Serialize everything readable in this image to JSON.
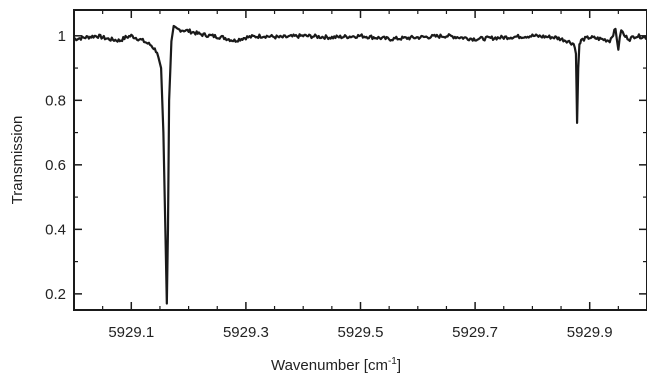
{
  "chart_data": {
    "type": "line",
    "title": "",
    "xlabel": "Wavenumber [cm",
    "xlabel_sup": "-1",
    "xlabel_end": "]",
    "ylabel": "Transmission",
    "xlim": [
      5929.0,
      5930.0
    ],
    "ylim": [
      0.15,
      1.08
    ],
    "x_tick_labels": [
      "5929.1",
      "5929.3",
      "5929.5",
      "5929.7",
      "5929.9"
    ],
    "x_ticks": [
      5929.1,
      5929.3,
      5929.5,
      5929.7,
      5929.9
    ],
    "x_minor_ticks": [
      5929.0,
      5929.05,
      5929.15,
      5929.2,
      5929.25,
      5929.35,
      5929.4,
      5929.45,
      5929.55,
      5929.6,
      5929.65,
      5929.75,
      5929.8,
      5929.85,
      5929.95,
      5930.0
    ],
    "y_tick_labels": [
      "0.2",
      "0.4",
      "0.6",
      "0.8",
      "1"
    ],
    "y_ticks": [
      0.2,
      0.4,
      0.6,
      0.8,
      1.0
    ],
    "y_minor_ticks": [
      0.3,
      0.5,
      0.7,
      0.9
    ],
    "grid": false,
    "legend": "none",
    "line_color": "#1a1a1a",
    "series": [
      {
        "x": [
          5929.0,
          5929.02,
          5929.04,
          5929.06,
          5929.08,
          5929.09,
          5929.1,
          5929.12,
          5929.135,
          5929.145,
          5929.152,
          5929.156,
          5929.16,
          5929.162,
          5929.164,
          5929.166,
          5929.17,
          5929.174,
          5929.18,
          5929.2,
          5929.22,
          5929.24,
          5929.26,
          5929.28,
          5929.3,
          5929.33,
          5929.36,
          5929.4,
          5929.45,
          5929.5,
          5929.55,
          5929.6,
          5929.65,
          5929.7,
          5929.75,
          5929.8,
          5929.84,
          5929.86,
          5929.872,
          5929.876,
          5929.878,
          5929.88,
          5929.882,
          5929.885,
          5929.89,
          5929.9,
          5929.92,
          5929.935,
          5929.945,
          5929.95,
          5929.955,
          5929.96,
          5929.97,
          5929.98,
          5930.0
        ],
        "y": [
          0.99,
          0.995,
          1.0,
          0.99,
          0.985,
          0.995,
          1.0,
          0.985,
          0.97,
          0.95,
          0.9,
          0.7,
          0.35,
          0.17,
          0.4,
          0.8,
          0.98,
          1.025,
          1.02,
          1.015,
          1.005,
          1.0,
          0.995,
          0.985,
          0.995,
          1.0,
          0.995,
          1.0,
          0.995,
          1.0,
          0.99,
          0.995,
          1.0,
          0.99,
          0.995,
          1.0,
          0.995,
          0.985,
          0.975,
          0.95,
          0.73,
          0.9,
          0.97,
          0.985,
          0.99,
          0.995,
          0.99,
          0.985,
          1.02,
          0.96,
          1.02,
          1.0,
          0.99,
          1.0,
          0.995
        ]
      }
    ]
  }
}
